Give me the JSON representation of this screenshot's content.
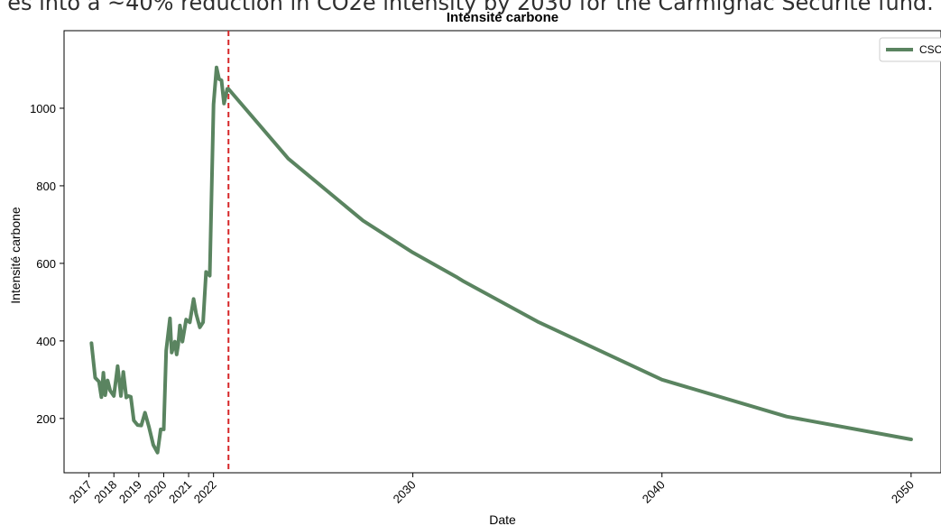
{
  "caption": "es into a ~40% reduction in CO2e intensity by 2030 for the Carmignac Securite fund.",
  "chart_data": {
    "type": "line",
    "title": "Intensité carbone",
    "xlabel": "Date",
    "ylabel": "Intensité carbone",
    "xlim": [
      2016.0,
      2051.2
    ],
    "ylim": [
      60,
      1200
    ],
    "x_ticks": [
      2017,
      2018,
      2019,
      2020,
      2021,
      2022,
      2030,
      2040,
      2050
    ],
    "x_tick_labels": [
      "2017",
      "2018",
      "2019",
      "2020",
      "2021",
      "2022",
      "2030",
      "2040",
      "2050"
    ],
    "y_ticks": [
      200,
      400,
      600,
      800,
      1000
    ],
    "y_tick_labels": [
      "200",
      "400",
      "600",
      "800",
      "1000"
    ],
    "vline": {
      "x": 2022.6,
      "color": "#d62728",
      "style": "dashed"
    },
    "grid": false,
    "legend_position": "top-right",
    "series": [
      {
        "name": "CSC",
        "color": "#5a8460",
        "x": [
          2017.1,
          2017.25,
          2017.4,
          2017.5,
          2017.58,
          2017.65,
          2017.75,
          2017.85,
          2018.0,
          2018.15,
          2018.28,
          2018.38,
          2018.5,
          2018.58,
          2018.68,
          2018.8,
          2018.95,
          2019.1,
          2019.25,
          2019.4,
          2019.58,
          2019.75,
          2019.88,
          2020.0,
          2020.1,
          2020.25,
          2020.32,
          2020.45,
          2020.52,
          2020.58,
          2020.65,
          2020.75,
          2020.9,
          2021.05,
          2021.2,
          2021.3,
          2021.45,
          2021.58,
          2021.7,
          2021.85,
          2022.0,
          2022.12,
          2022.22,
          2022.32,
          2022.42,
          2022.55,
          2022.6,
          2025.0,
          2028.0,
          2030.0,
          2031.8,
          2032.0,
          2035.0,
          2040.0,
          2045.0,
          2050.0
        ],
        "y": [
          394,
          305,
          295,
          255,
          318,
          260,
          298,
          272,
          258,
          335,
          258,
          320,
          254,
          258,
          256,
          195,
          183,
          182,
          215,
          180,
          132,
          112,
          172,
          172,
          375,
          458,
          370,
          398,
          365,
          390,
          440,
          398,
          455,
          448,
          508,
          470,
          435,
          448,
          578,
          568,
          1010,
          1105,
          1075,
          1072,
          1012,
          1050,
          1050,
          870,
          710,
          628,
          563,
          555,
          450,
          300,
          205,
          146
        ]
      }
    ]
  }
}
